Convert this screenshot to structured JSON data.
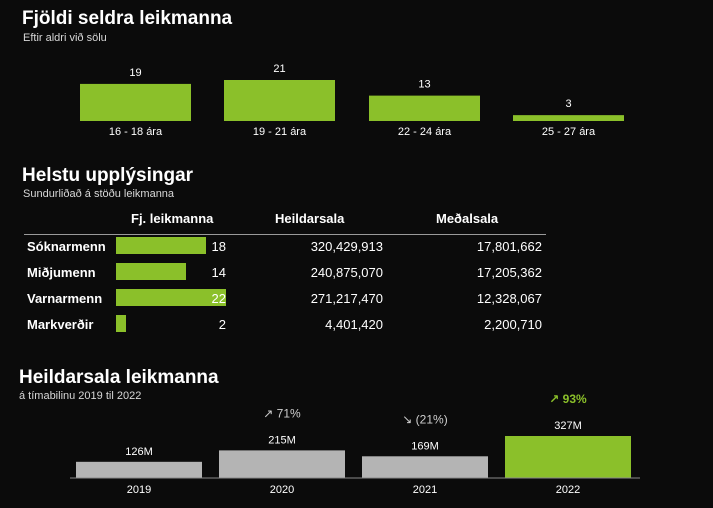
{
  "section1": {
    "title": "Fjöldi seldra leikmanna",
    "subtitle": "Eftir aldri við sölu"
  },
  "section2": {
    "title": "Helstu upplýsingar",
    "subtitle": "Sundurliðað á stöðu leikmanna",
    "columns": [
      "Fj. leikmanna",
      "Heildarsala",
      "Meðalsala"
    ]
  },
  "section3": {
    "title": "Heildarsala leikmanna",
    "subtitle": "á tímabilinu 2019 til 2022"
  },
  "colors": {
    "accent": "#8bc02a",
    "grey_bar": "#b4b4b4",
    "background": "#0b0b0b",
    "change_text": "#cfcfcf",
    "change_highlight": "#8bc02a"
  },
  "chart_data": [
    {
      "type": "bar",
      "title": "Fjöldi seldra leikmanna",
      "subtitle": "Eftir aldri við sölu",
      "categories": [
        "16 - 18 ára",
        "19 - 21 ára",
        "22 - 24 ára",
        "25 - 27 ára"
      ],
      "values": [
        19,
        21,
        13,
        3
      ],
      "data_labels": [
        "19",
        "21",
        "13",
        "3"
      ],
      "ylim": [
        0,
        21
      ],
      "grid": false,
      "color": "#8bc02a"
    },
    {
      "type": "table",
      "title": "Helstu upplýsingar",
      "subtitle": "Sundurliðað á stöðu leikmanna",
      "columns": [
        "Fj. leikmanna",
        "Heildarsala",
        "Meðalsala"
      ],
      "bar_max": 22,
      "rows": [
        {
          "name": "Sóknarmenn",
          "count": 18,
          "count_label": "18",
          "total": "320,429,913",
          "average": "17,801,662"
        },
        {
          "name": "Miðjumenn",
          "count": 14,
          "count_label": "14",
          "total": "240,875,070",
          "average": "17,205,362"
        },
        {
          "name": "Varnarmenn",
          "count": 22,
          "count_label": "22",
          "total": "271,217,470",
          "average": "12,328,067"
        },
        {
          "name": "Markverðir",
          "count": 2,
          "count_label": "2",
          "total": "4,401,420",
          "average": "2,200,710"
        }
      ]
    },
    {
      "type": "bar",
      "title": "Heildarsala leikmanna",
      "subtitle": "á tímabilinu 2019 til 2022",
      "categories": [
        "2019",
        "2020",
        "2021",
        "2022"
      ],
      "values": [
        126,
        215,
        169,
        327
      ],
      "data_labels": [
        "126M",
        "215M",
        "169M",
        "327M"
      ],
      "changes": [
        "",
        "↗ 71%",
        "↘ (21%)",
        "↗ 93%"
      ],
      "highlight": [
        false,
        false,
        false,
        true
      ],
      "ylim": [
        0,
        327
      ],
      "grid": false
    }
  ]
}
